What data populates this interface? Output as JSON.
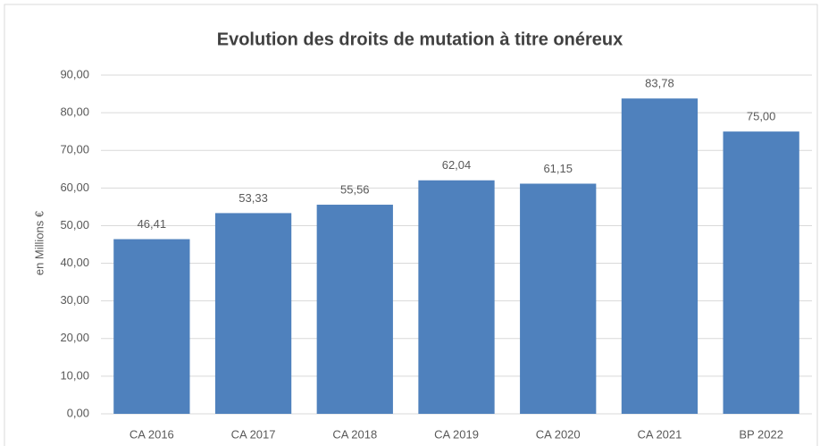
{
  "chart_data": {
    "type": "bar",
    "title": "Evolution des droits de mutation à titre onéreux",
    "y_label": "en Millions €",
    "categories": [
      "CA 2016",
      "CA 2017",
      "CA 2018",
      "CA 2019",
      "CA 2020",
      "CA 2021",
      "BP 2022"
    ],
    "values": [
      46.41,
      53.33,
      55.56,
      62.04,
      61.15,
      83.78,
      75.0
    ],
    "value_labels": [
      "46,41",
      "53,33",
      "55,56",
      "62,04",
      "61,15",
      "83,78",
      "75,00"
    ],
    "color": "#4f81bd",
    "ylim": [
      0,
      90
    ],
    "yticks": [
      {
        "value": 0,
        "label": "0,00"
      },
      {
        "value": 10,
        "label": "10,00"
      },
      {
        "value": 20,
        "label": "20,00"
      },
      {
        "value": 30,
        "label": "30,00"
      },
      {
        "value": 40,
        "label": "40,00"
      },
      {
        "value": 50,
        "label": "50,00"
      },
      {
        "value": 60,
        "label": "60,00"
      },
      {
        "value": 70,
        "label": "70,00"
      },
      {
        "value": 80,
        "label": "80,00"
      },
      {
        "value": 90,
        "label": "90,00"
      }
    ],
    "grid": true
  }
}
